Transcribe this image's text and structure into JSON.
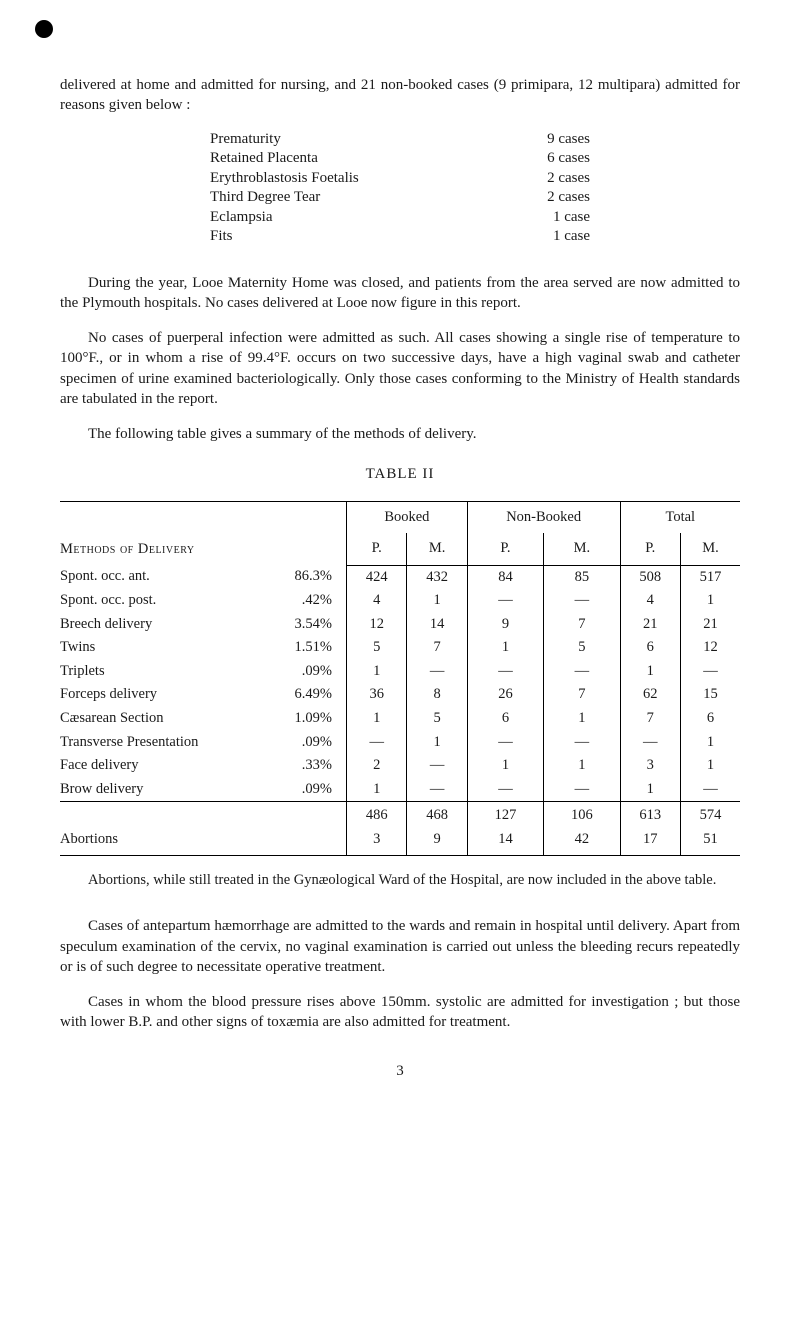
{
  "intro": {
    "p1": "delivered at home and admitted for nursing, and 21 non-booked cases (9 primipara, 12 multipara) admitted for reasons given below :"
  },
  "reasons": [
    {
      "label": "Prematurity",
      "dots": "…..",
      "count": "9 cases"
    },
    {
      "label": "Retained Placenta",
      "dots": "…..",
      "count": "6 cases"
    },
    {
      "label": "Erythroblastosis Foetalis",
      "dots": "…..",
      "count": "2 cases"
    },
    {
      "label": "Third Degree Tear",
      "dots": "…..",
      "count": "2 cases"
    },
    {
      "label": "Eclampsia",
      "dots": "…..",
      "count": "1 case"
    },
    {
      "label": "Fits",
      "dots": "…..",
      "count": "1 case"
    }
  ],
  "mid": {
    "p1": "During the year, Looe Maternity Home was closed, and patients from the area served are now admitted to the Plymouth hospitals. No cases delivered at Looe now figure in this report.",
    "p2": "No cases of puerperal infection were admitted as such. All cases showing a single rise of temperature to 100°F., or in whom a rise of 99.4°F. occurs on two successive days, have a high vaginal swab and catheter specimen of urine examined bacteriologically. Only those cases conforming to the Ministry of Health standards are tabulated in the report.",
    "p3": "The following table gives a summary of the methods of delivery."
  },
  "table2": {
    "title": "TABLE II",
    "group_headers": [
      "Booked",
      "Non-Booked",
      "Total"
    ],
    "sub_headers": [
      "P.",
      "M.",
      "P.",
      "M.",
      "P.",
      "M."
    ],
    "methods_caption": "Methods of Delivery",
    "rows": [
      {
        "label": "Spont. occ. ant.",
        "pct": "86.3%",
        "v": [
          "424",
          "432",
          "84",
          "85",
          "508",
          "517"
        ]
      },
      {
        "label": "Spont. occ. post.",
        "pct": ".42%",
        "v": [
          "4",
          "1",
          "—",
          "—",
          "4",
          "1"
        ]
      },
      {
        "label": "Breech delivery",
        "pct": "3.54%",
        "v": [
          "12",
          "14",
          "9",
          "7",
          "21",
          "21"
        ]
      },
      {
        "label": "Twins",
        "pct": "1.51%",
        "v": [
          "5",
          "7",
          "1",
          "5",
          "6",
          "12"
        ]
      },
      {
        "label": "Triplets",
        "pct": ".09%",
        "v": [
          "1",
          "—",
          "—",
          "—",
          "1",
          "—"
        ]
      },
      {
        "label": "Forceps delivery",
        "pct": "6.49%",
        "v": [
          "36",
          "8",
          "26",
          "7",
          "62",
          "15"
        ]
      },
      {
        "label": "Cæsarean Section",
        "pct": "1.09%",
        "v": [
          "1",
          "5",
          "6",
          "1",
          "7",
          "6"
        ]
      },
      {
        "label": "Transverse Presentation",
        "pct": ".09%",
        "v": [
          "—",
          "1",
          "—",
          "—",
          "—",
          "1"
        ]
      },
      {
        "label": "Face delivery",
        "pct": ".33%",
        "v": [
          "2",
          "—",
          "1",
          "1",
          "3",
          "1"
        ]
      },
      {
        "label": "Brow delivery",
        "pct": ".09%",
        "v": [
          "1",
          "—",
          "—",
          "—",
          "1",
          "—"
        ]
      }
    ],
    "totals": [
      {
        "label": "",
        "pct": "",
        "v": [
          "486",
          "468",
          "127",
          "106",
          "613",
          "574"
        ]
      },
      {
        "label": "Abortions",
        "pct": "",
        "v": [
          "3",
          "9",
          "14",
          "42",
          "17",
          "51"
        ]
      }
    ]
  },
  "footnote": "Abortions, while still treated in the Gynæological Ward of the Hospital, are now included in the above table.",
  "closing": {
    "p1": "Cases of antepartum hæmorrhage are admitted to the wards and remain in hospital until delivery. Apart from speculum examination of the cervix, no vaginal examination is carried out unless the bleeding recurs repeatedly or is of such degree to necessitate operative treatment.",
    "p2": "Cases in whom the blood pressure rises above 150mm. systolic are admitted for investigation ; but those with lower B.P. and other signs of toxæmia are also admitted for treatment."
  },
  "page_number": "3"
}
